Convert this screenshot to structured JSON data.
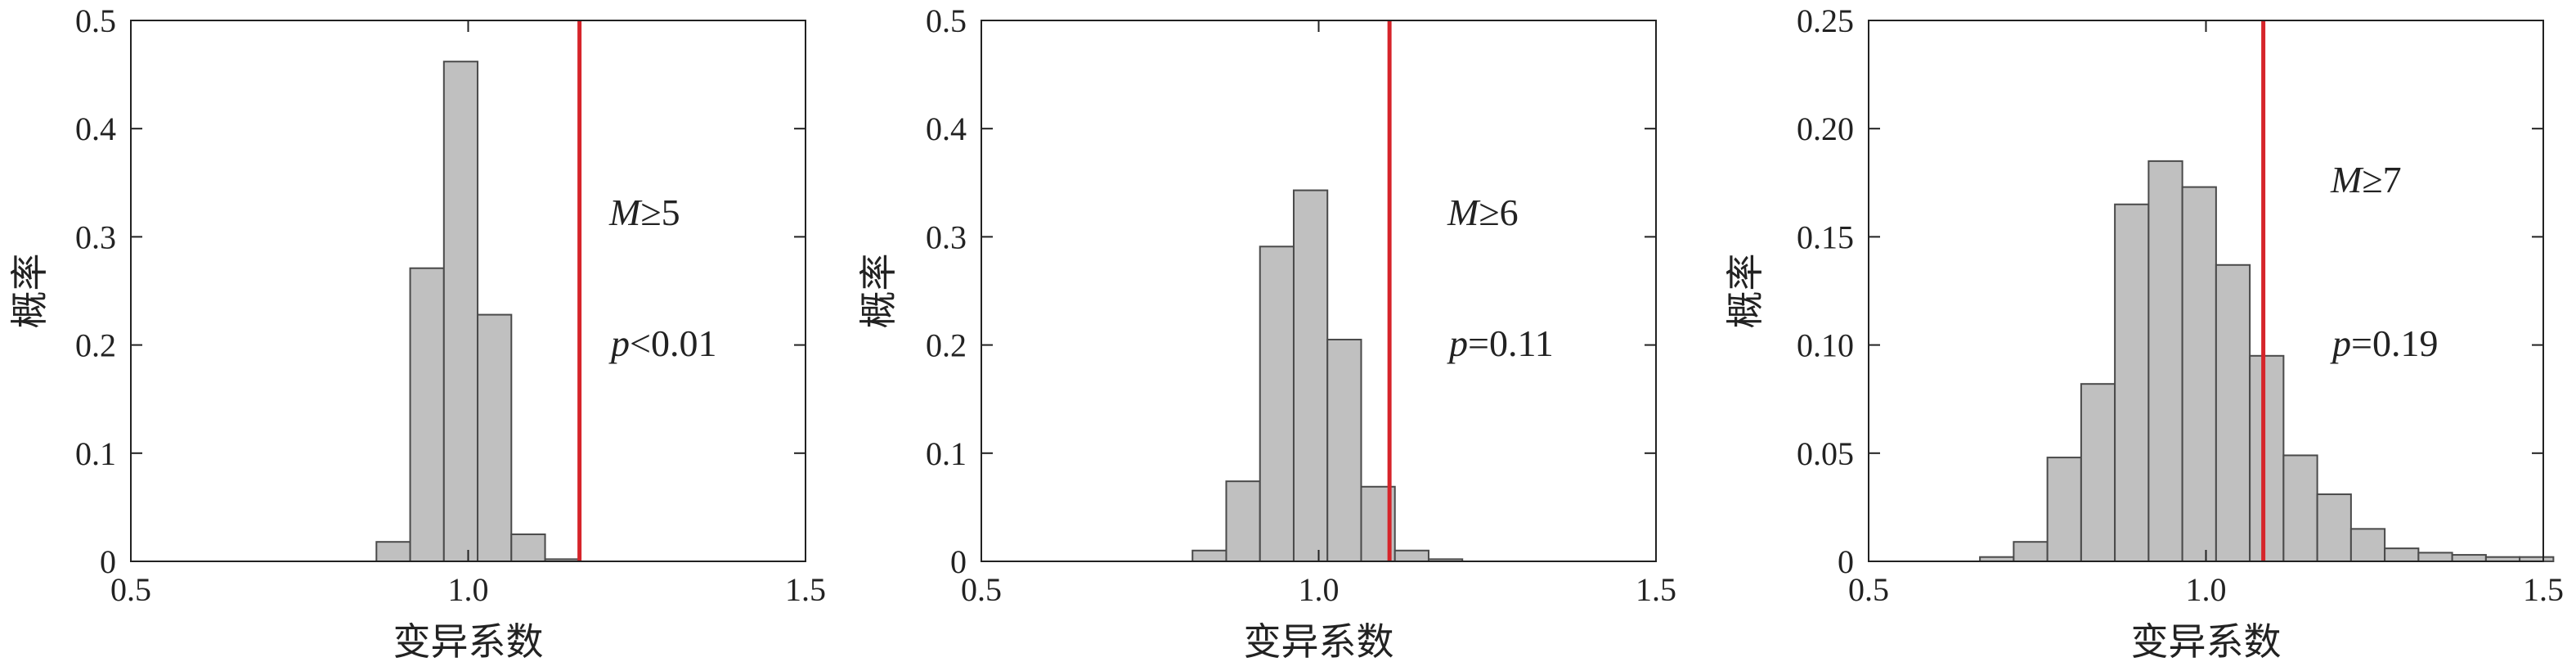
{
  "chart_data": [
    {
      "type": "bar",
      "xlabel": "变异系数",
      "ylabel": "概率",
      "xlim": [
        0.5,
        1.5
      ],
      "ylim": [
        0,
        0.5
      ],
      "x_ticks": [
        {
          "value": 0.5,
          "label": "0.5"
        },
        {
          "value": 1.0,
          "label": "1.0"
        },
        {
          "value": 1.5,
          "label": "1.5"
        }
      ],
      "y_ticks": [
        {
          "value": 0,
          "label": "0"
        },
        {
          "value": 0.1,
          "label": "0.1"
        },
        {
          "value": 0.2,
          "label": "0.2"
        },
        {
          "value": 0.3,
          "label": "0.3"
        },
        {
          "value": 0.4,
          "label": "0.4"
        },
        {
          "value": 0.5,
          "label": "0.5"
        }
      ],
      "bin_width": 0.05,
      "bin_centers": [
        0.889,
        0.939,
        0.989,
        1.039,
        1.089,
        1.139
      ],
      "values": [
        0.018,
        0.271,
        0.462,
        0.228,
        0.025,
        0.002
      ],
      "observed_line_x": 1.165,
      "annotation_m": {
        "symbol": "M",
        "text": "≥5"
      },
      "annotation_p": {
        "symbol": "p",
        "text": "<0.01"
      }
    },
    {
      "type": "bar",
      "xlabel": "变异系数",
      "ylabel": "概率",
      "xlim": [
        0.5,
        1.5
      ],
      "ylim": [
        0,
        0.5
      ],
      "x_ticks": [
        {
          "value": 0.5,
          "label": "0.5"
        },
        {
          "value": 1.0,
          "label": "1.0"
        },
        {
          "value": 1.5,
          "label": "1.5"
        }
      ],
      "y_ticks": [
        {
          "value": 0,
          "label": "0"
        },
        {
          "value": 0.1,
          "label": "0.1"
        },
        {
          "value": 0.2,
          "label": "0.2"
        },
        {
          "value": 0.3,
          "label": "0.3"
        },
        {
          "value": 0.4,
          "label": "0.4"
        },
        {
          "value": 0.5,
          "label": "0.5"
        }
      ],
      "bin_width": 0.05,
      "bin_centers": [
        0.838,
        0.888,
        0.938,
        0.988,
        1.038,
        1.088,
        1.138,
        1.188
      ],
      "values": [
        0.01,
        0.074,
        0.291,
        0.343,
        0.205,
        0.069,
        0.01,
        0.002
      ],
      "observed_line_x": 1.105,
      "annotation_m": {
        "symbol": "M",
        "text": "≥6"
      },
      "annotation_p": {
        "symbol": "p",
        "text": "=0.11"
      }
    },
    {
      "type": "bar",
      "xlabel": "变异系数",
      "ylabel": "概率",
      "xlim": [
        0.5,
        1.5
      ],
      "ylim": [
        0,
        0.25
      ],
      "x_ticks": [
        {
          "value": 0.5,
          "label": "0.5"
        },
        {
          "value": 1.0,
          "label": "1.0"
        },
        {
          "value": 1.5,
          "label": "1.5"
        }
      ],
      "y_ticks": [
        {
          "value": 0,
          "label": "0"
        },
        {
          "value": 0.05,
          "label": "0.05"
        },
        {
          "value": 0.1,
          "label": "0.10"
        },
        {
          "value": 0.15,
          "label": "0.15"
        },
        {
          "value": 0.2,
          "label": "0.20"
        },
        {
          "value": 0.25,
          "label": "0.25"
        }
      ],
      "bin_width": 0.05,
      "bin_centers": [
        0.69,
        0.74,
        0.79,
        0.84,
        0.89,
        0.94,
        0.99,
        1.04,
        1.09,
        1.14,
        1.19,
        1.24,
        1.29,
        1.34,
        1.39,
        1.44,
        1.49
      ],
      "values": [
        0.002,
        0.009,
        0.048,
        0.082,
        0.165,
        0.185,
        0.173,
        0.137,
        0.095,
        0.049,
        0.031,
        0.015,
        0.006,
        0.004,
        0.003,
        0.002,
        0.002
      ],
      "observed_line_x": 1.085,
      "annotation_m": {
        "symbol": "M",
        "text": "≥7"
      },
      "annotation_p": {
        "symbol": "p",
        "text": "=0.19"
      }
    }
  ],
  "colors": {
    "bar_fill": "#c0c0c0",
    "bar_edge": "#4a4a4a",
    "observed_line": "#d6242a",
    "axis": "#222222"
  }
}
